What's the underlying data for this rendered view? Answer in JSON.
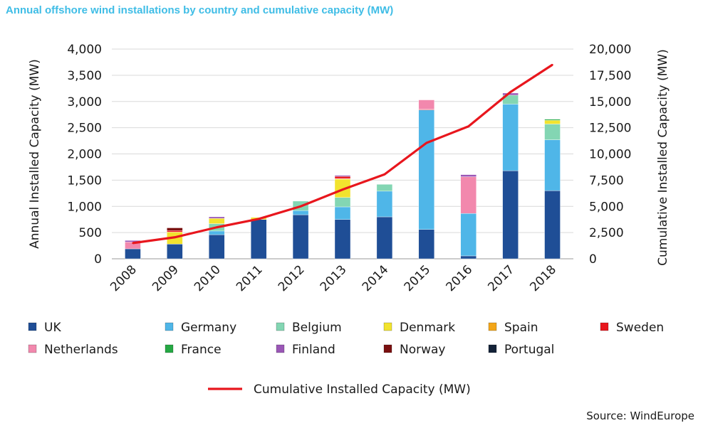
{
  "title": "Annual offshore wind installations by country and cumulative capacity (MW)",
  "source": "Source: WindEurope",
  "chart_data": {
    "type": "bar",
    "stacked": true,
    "title": "Annual offshore wind installations by country and cumulative capacity (MW)",
    "categories": [
      "2008",
      "2009",
      "2010",
      "2011",
      "2012",
      "2013",
      "2014",
      "2015",
      "2016",
      "2017",
      "2018"
    ],
    "ylabel": "Annual Installed Capacity (MW)",
    "y2label": "Cumulative Installed Capacity (MW)",
    "ylim": [
      0,
      4000
    ],
    "y2lim": [
      0,
      20000
    ],
    "yticks": [
      "0",
      "500",
      "1,000",
      "1,500",
      "2,000",
      "2,500",
      "3,000",
      "3,500",
      "4,000"
    ],
    "y2ticks": [
      "0",
      "2,500",
      "5,000",
      "7,500",
      "10,000",
      "12,500",
      "15,000",
      "17,500",
      "20,000"
    ],
    "series": [
      {
        "name": "UK",
        "color": "#1f4e96",
        "values": [
          190,
          280,
          460,
          750,
          840,
          750,
          800,
          560,
          55,
          1680,
          1300
        ]
      },
      {
        "name": "Germany",
        "color": "#4fb6e8",
        "values": [
          0,
          0,
          70,
          0,
          80,
          240,
          490,
          2280,
          810,
          1270,
          970
        ]
      },
      {
        "name": "Belgium",
        "color": "#83d6b3",
        "values": [
          0,
          0,
          140,
          0,
          180,
          180,
          130,
          0,
          0,
          170,
          300
        ]
      },
      {
        "name": "Denmark",
        "color": "#f2e32e",
        "values": [
          0,
          230,
          100,
          40,
          0,
          350,
          0,
          0,
          0,
          0,
          70
        ]
      },
      {
        "name": "Spain",
        "color": "#f3a619",
        "values": [
          0,
          0,
          0,
          0,
          0,
          10,
          0,
          0,
          0,
          0,
          0
        ]
      },
      {
        "name": "Sweden",
        "color": "#e8161d",
        "values": [
          0,
          30,
          0,
          0,
          0,
          40,
          0,
          10,
          0,
          0,
          0
        ]
      },
      {
        "name": "Netherlands",
        "color": "#f288ad",
        "values": [
          130,
          0,
          0,
          0,
          0,
          0,
          0,
          180,
          700,
          0,
          0
        ]
      },
      {
        "name": "France",
        "color": "#25a844",
        "values": [
          0,
          0,
          0,
          0,
          0,
          0,
          0,
          0,
          0,
          0,
          20
        ]
      },
      {
        "name": "Finland",
        "color": "#9a57b6",
        "values": [
          30,
          0,
          30,
          0,
          0,
          20,
          0,
          0,
          40,
          40,
          0
        ]
      },
      {
        "name": "Norway",
        "color": "#7a1010",
        "values": [
          0,
          50,
          0,
          0,
          0,
          0,
          0,
          0,
          0,
          0,
          0
        ]
      },
      {
        "name": "Portugal",
        "color": "#132238",
        "values": [
          0,
          0,
          0,
          0,
          0,
          0,
          0,
          0,
          0,
          0,
          0
        ]
      }
    ],
    "line": {
      "name": "Cumulative Installed Capacity (MW)",
      "color": "#e8161d",
      "values": [
        1500,
        2050,
        3000,
        3800,
        5000,
        6600,
        8050,
        11050,
        12630,
        15900,
        18500
      ]
    },
    "legend_position": "bottom"
  }
}
